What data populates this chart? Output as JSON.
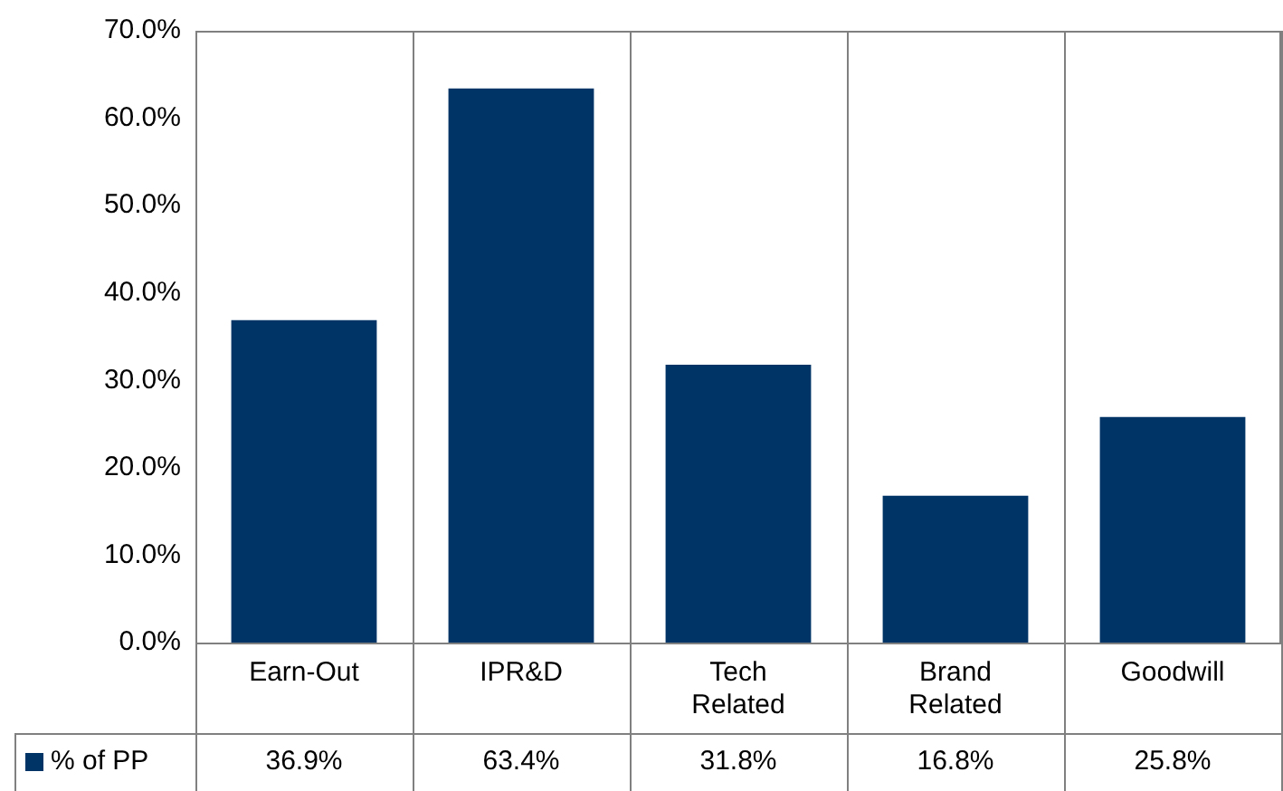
{
  "chart_data": {
    "type": "bar",
    "categories": [
      "Earn-Out",
      "IPR&D",
      "Tech Related",
      "Brand Related",
      "Goodwill"
    ],
    "series": [
      {
        "name": "% of PP",
        "color": "#003366",
        "values": [
          36.9,
          63.4,
          31.8,
          16.8,
          25.8
        ],
        "value_labels": [
          "36.9%",
          "63.4%",
          "31.8%",
          "16.8%",
          "25.8%"
        ]
      }
    ],
    "ylim": [
      0,
      70
    ],
    "yticks": [
      {
        "value": 0,
        "label": "0.0%"
      },
      {
        "value": 10,
        "label": "10.0%"
      },
      {
        "value": 20,
        "label": "20.0%"
      },
      {
        "value": 30,
        "label": "30.0%"
      },
      {
        "value": 40,
        "label": "40.0%"
      },
      {
        "value": 50,
        "label": "50.0%"
      },
      {
        "value": 60,
        "label": "60.0%"
      },
      {
        "value": 70,
        "label": "70.0%"
      }
    ],
    "grid": false,
    "legend": "bottom left"
  }
}
